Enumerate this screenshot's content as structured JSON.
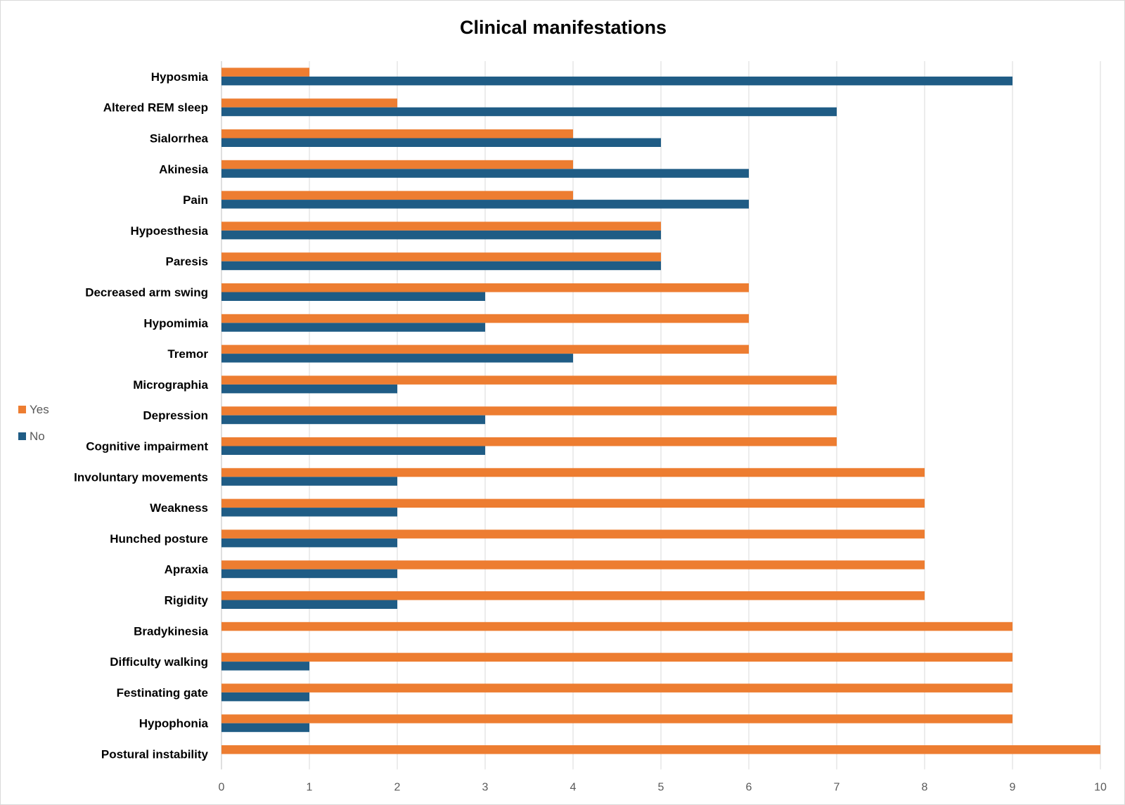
{
  "chart_data": {
    "type": "bar",
    "orientation": "horizontal",
    "title": "Clinical manifestations",
    "categories": [
      "Hyposmia",
      "Altered REM sleep",
      "Sialorrhea",
      "Akinesia",
      "Pain",
      "Hypoesthesia",
      "Paresis",
      "Decreased arm swing",
      "Hypomimia",
      "Tremor",
      "Micrographia",
      "Depression",
      "Cognitive impairment",
      "Involuntary movements",
      "Weakness",
      "Hunched posture",
      "Apraxia",
      "Rigidity",
      "Bradykinesia",
      "Difficulty walking",
      "Festinating gate",
      "Hypophonia",
      "Postural instability"
    ],
    "series": [
      {
        "name": "Yes",
        "color": "#ED7D31",
        "values": [
          1,
          2,
          4,
          4,
          4,
          5,
          5,
          6,
          6,
          6,
          7,
          7,
          7,
          8,
          8,
          8,
          8,
          8,
          9,
          9,
          9,
          9,
          10
        ]
      },
      {
        "name": "No",
        "color": "#1F5C85",
        "values": [
          9,
          7,
          5,
          6,
          6,
          5,
          5,
          3,
          3,
          4,
          2,
          3,
          3,
          2,
          2,
          2,
          2,
          2,
          0,
          1,
          1,
          1,
          0
        ]
      }
    ],
    "xlim": [
      0,
      10
    ],
    "xticks": [
      "0",
      "1",
      "2",
      "3",
      "4",
      "5",
      "6",
      "7",
      "8",
      "9",
      "10"
    ],
    "grid": true,
    "legend_position": "left"
  }
}
